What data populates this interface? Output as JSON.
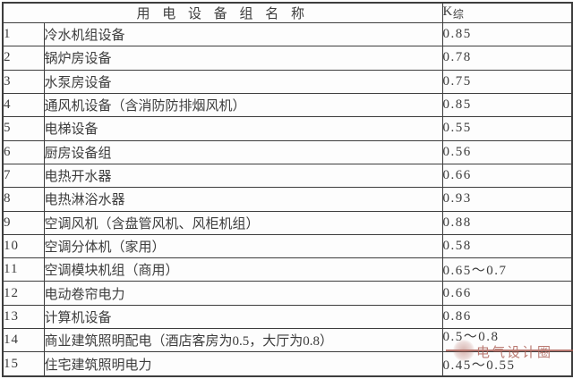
{
  "table": {
    "header": {
      "name_col": "用 电 设 备 组 名 称",
      "k_base": "K",
      "k_sub": "综"
    },
    "rows": [
      {
        "num": "1",
        "name": "冷水机组设备",
        "value": "0.85"
      },
      {
        "num": "2",
        "name": "锅炉房设备",
        "value": "0.78"
      },
      {
        "num": "3",
        "name": "水泵房设备",
        "value": "0.75"
      },
      {
        "num": "4",
        "name": "通风机设备（含消防防排烟风机）",
        "value": "0.85"
      },
      {
        "num": "5",
        "name": "电梯设备",
        "value": "0.55"
      },
      {
        "num": "6",
        "name": "厨房设备组",
        "value": "0.56"
      },
      {
        "num": "7",
        "name": "电热开水器",
        "value": "0.66"
      },
      {
        "num": "8",
        "name": "电热淋浴水器",
        "value": "0.93"
      },
      {
        "num": "9",
        "name": "空调风机（含盘管风机、风柜机组）",
        "value": "0.88"
      },
      {
        "num": "10",
        "name": "空调分体机（家用）",
        "value": "0.58"
      },
      {
        "num": "11",
        "name": "空调模块机组（商用）",
        "value": "0.65～0.7"
      },
      {
        "num": "12",
        "name": "电动卷帘电力",
        "value": "0.66"
      },
      {
        "num": "13",
        "name": "计算机设备",
        "value": "0.86"
      },
      {
        "num": "14",
        "name": "商业建筑照明配电（酒店客房为0.5，大厅为0.8）",
        "value": "0.5～0.8"
      },
      {
        "num": "15",
        "name": "住宅建筑照明电力",
        "value": "0.45～0.55"
      }
    ]
  },
  "watermark": {
    "text": "电气设计圈",
    "color": "#a8564c"
  },
  "colors": {
    "border": "#3d3d3d",
    "text": "#3c3c3c",
    "background": "#fdfdfd"
  }
}
